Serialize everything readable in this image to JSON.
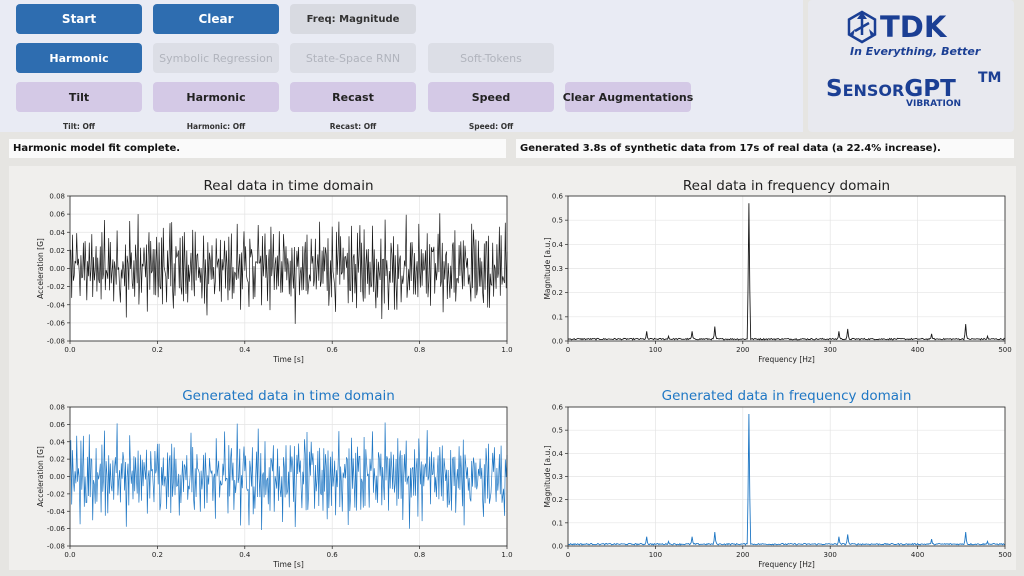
{
  "toolbar": {
    "start_label": "Start",
    "clear_label": "Clear",
    "freq_label": "Freq: Magnitude"
  },
  "models": {
    "harmonic_label": "Harmonic",
    "symbolic_label": "Symbolic Regression",
    "rnn_label": "State-Space RNN",
    "softtokens_label": "Soft-Tokens"
  },
  "augmentations": {
    "tilt_label": "Tilt",
    "harmonic_label": "Harmonic",
    "recast_label": "Recast",
    "speed_label": "Speed",
    "clear_label": "Clear Augmentations",
    "tilt_status": "Tilt: Off",
    "harmonic_status": "Harmonic: Off",
    "recast_status": "Recast: Off",
    "speed_status": "Speed: Off"
  },
  "logo": {
    "brand": "TDK",
    "tagline": "In Everything, Better",
    "product_main": "SensorGPT",
    "product_tm": "TM",
    "product_sub": "VIBRATION"
  },
  "messages": {
    "left": "Harmonic model fit complete.",
    "right": "Generated 3.8s of synthetic data from 17s of real data (a 22.4% increase)."
  },
  "colors": {
    "real": "#1a1a1a",
    "generated": "#1f77c4",
    "button_primary": "#2e6db0",
    "button_augment": "#d4c9e6"
  },
  "chart_data": [
    {
      "type": "line",
      "title": "Real data in time domain",
      "xlabel": "Time [s]",
      "ylabel": "Acceleration [G]",
      "xlim": [
        0.0,
        1.0
      ],
      "ylim": [
        -0.08,
        0.08
      ],
      "xticks": [
        "0.0",
        "0.2",
        "0.4",
        "0.6",
        "0.8",
        "1.0"
      ],
      "yticks": [
        "0.08",
        "0.06",
        "0.04",
        "0.02",
        "0.00",
        "-0.02",
        "-0.04",
        "-0.06",
        "-0.08"
      ],
      "grid": true,
      "series": [
        {
          "x": [
            0.0,
            0.1,
            0.2,
            0.3,
            0.4,
            0.5,
            0.6,
            0.7,
            0.8,
            0.9,
            1.0
          ],
          "y_min": -0.072,
          "y_max": 0.068
        }
      ]
    },
    {
      "type": "line",
      "title": "Real data in frequency domain",
      "xlabel": "Frequency [Hz]",
      "ylabel": "Magnitude [a.u.]",
      "xlim": [
        0,
        500
      ],
      "ylim": [
        0.0,
        0.6
      ],
      "xticks": [
        "0",
        "100",
        "200",
        "300",
        "400",
        "500"
      ],
      "yticks": [
        "0.6",
        "0.5",
        "0.4",
        "0.3",
        "0.2",
        "0.1",
        "0.0"
      ],
      "grid": true,
      "series": [
        {
          "x": [
            90,
            115,
            142,
            168,
            207,
            310,
            320,
            416,
            455,
            480
          ],
          "y": [
            0.04,
            0.02,
            0.04,
            0.06,
            0.57,
            0.04,
            0.05,
            0.03,
            0.07,
            0.02
          ]
        }
      ]
    },
    {
      "type": "line",
      "title": "Generated data in time domain",
      "xlabel": "Time [s]",
      "ylabel": "Acceleration [G]",
      "xlim": [
        0.0,
        1.0
      ],
      "ylim": [
        -0.08,
        0.08
      ],
      "xticks": [
        "0.0",
        "0.2",
        "0.4",
        "0.6",
        "0.8",
        "1.0"
      ],
      "yticks": [
        "0.08",
        "0.06",
        "0.04",
        "0.02",
        "0.00",
        "-0.02",
        "-0.04",
        "-0.06",
        "-0.08"
      ],
      "grid": true,
      "series": [
        {
          "x": [
            0.0,
            0.1,
            0.2,
            0.3,
            0.4,
            0.5,
            0.6,
            0.7,
            0.8,
            0.9,
            1.0
          ],
          "y_min": -0.068,
          "y_max": 0.066
        }
      ]
    },
    {
      "type": "line",
      "title": "Generated data in frequency domain",
      "xlabel": "Frequency [Hz]",
      "ylabel": "Magnitude [a.u.]",
      "xlim": [
        0,
        500
      ],
      "ylim": [
        0.0,
        0.6
      ],
      "xticks": [
        "0",
        "100",
        "200",
        "300",
        "400",
        "500"
      ],
      "yticks": [
        "0.6",
        "0.5",
        "0.4",
        "0.3",
        "0.2",
        "0.1",
        "0.0"
      ],
      "grid": true,
      "series": [
        {
          "x": [
            90,
            115,
            142,
            168,
            207,
            310,
            320,
            416,
            455,
            480
          ],
          "y": [
            0.04,
            0.02,
            0.04,
            0.06,
            0.57,
            0.04,
            0.05,
            0.03,
            0.06,
            0.02
          ]
        }
      ]
    }
  ]
}
